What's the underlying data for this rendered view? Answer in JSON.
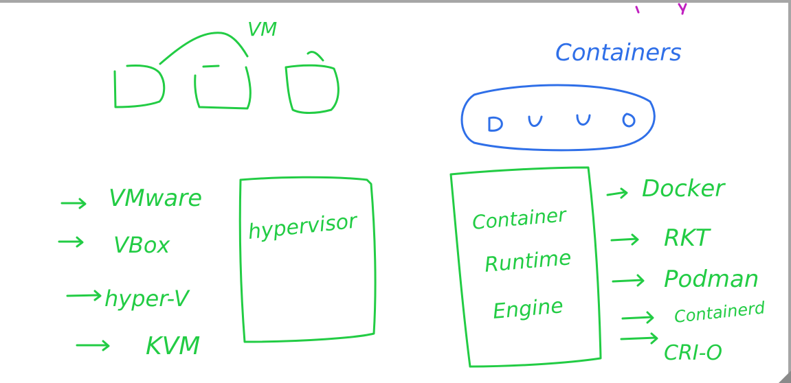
{
  "colors": {
    "green": "#22cc44",
    "blue": "#2f6fe8",
    "magenta": "#c020c0",
    "frame": "#a6a6a6"
  },
  "vm": {
    "title": "VM",
    "hypervisors": [
      "VMware",
      "VBox",
      "hyper-V",
      "KVM"
    ],
    "box_label": "hypervisor"
  },
  "containers": {
    "title": "Containers",
    "box_label_lines": [
      "Container",
      "Runtime",
      "Engine"
    ],
    "runtimes": [
      "Docker",
      "RKT",
      "Podman",
      "Containerd",
      "CRI-O"
    ]
  }
}
